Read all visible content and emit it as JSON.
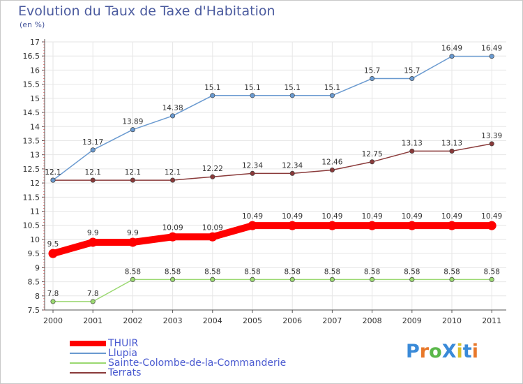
{
  "header": {
    "title": "Evolution du Taux de Taxe d'Habitation",
    "subtitle": "(en %)"
  },
  "logo": {
    "text": "ProXiti",
    "colors": [
      "#3a8ad8",
      "#e8782a",
      "#5ab84a",
      "#3a8ad8",
      "#d8c02a",
      "#3a8ad8",
      "#e8782a"
    ]
  },
  "chart_data": {
    "type": "line",
    "title": "Evolution du Taux de Taxe d'Habitation",
    "ylabel": "(en %)",
    "xlabel": "",
    "x": [
      "2000",
      "2001",
      "2002",
      "2003",
      "2004",
      "2005",
      "2006",
      "2007",
      "2008",
      "2009",
      "2010",
      "2011"
    ],
    "ylim": [
      7.5,
      17
    ],
    "yticks": [
      "7.5",
      "8",
      "8.5",
      "9",
      "9.5",
      "10",
      "10.5",
      "11",
      "11.5",
      "12",
      "12.5",
      "13",
      "13.5",
      "14",
      "14.5",
      "15",
      "15.5",
      "16",
      "16.5",
      "17"
    ],
    "grid": true,
    "legend_position": "bottom-left",
    "series": [
      {
        "name": "THUIR",
        "color": "#ff0000",
        "values": [
          9.5,
          9.9,
          9.9,
          10.09,
          10.09,
          10.49,
          10.49,
          10.49,
          10.49,
          10.49,
          10.49,
          10.49
        ],
        "labels": [
          "9.5",
          "9.9",
          "9.9",
          "10.09",
          "10.09",
          "10.49",
          "10.49",
          "10.49",
          "10.49",
          "10.49",
          "10.49",
          "10.49"
        ]
      },
      {
        "name": "Llupia",
        "color": "#6a9ad0",
        "values": [
          12.1,
          13.17,
          13.89,
          14.38,
          15.1,
          15.1,
          15.1,
          15.1,
          15.7,
          15.7,
          16.49,
          16.49
        ],
        "labels": [
          "12.1",
          "13.17",
          "13.89",
          "14.38",
          "15.1",
          "15.1",
          "15.1",
          "15.1",
          "15.7",
          "15.7",
          "16.49",
          "16.49"
        ]
      },
      {
        "name": "Sainte-Colombe-de-la-Commanderie",
        "color": "#9ad870",
        "values": [
          7.8,
          7.8,
          8.58,
          8.58,
          8.58,
          8.58,
          8.58,
          8.58,
          8.58,
          8.58,
          8.58,
          8.58
        ],
        "labels": [
          "7.8",
          "7.8",
          "8.58",
          "8.58",
          "8.58",
          "8.58",
          "8.58",
          "8.58",
          "8.58",
          "8.58",
          "8.58",
          "8.58"
        ]
      },
      {
        "name": "Terrats",
        "color": "#8a3a3a",
        "values": [
          12.1,
          12.1,
          12.1,
          12.1,
          12.22,
          12.34,
          12.34,
          12.46,
          12.75,
          13.13,
          13.13,
          13.39
        ],
        "labels": [
          "12.1",
          "12.1",
          "12.1",
          "12.1",
          "12.22",
          "12.34",
          "12.34",
          "12.46",
          "12.75",
          "13.13",
          "13.13",
          "13.39"
        ]
      }
    ]
  }
}
